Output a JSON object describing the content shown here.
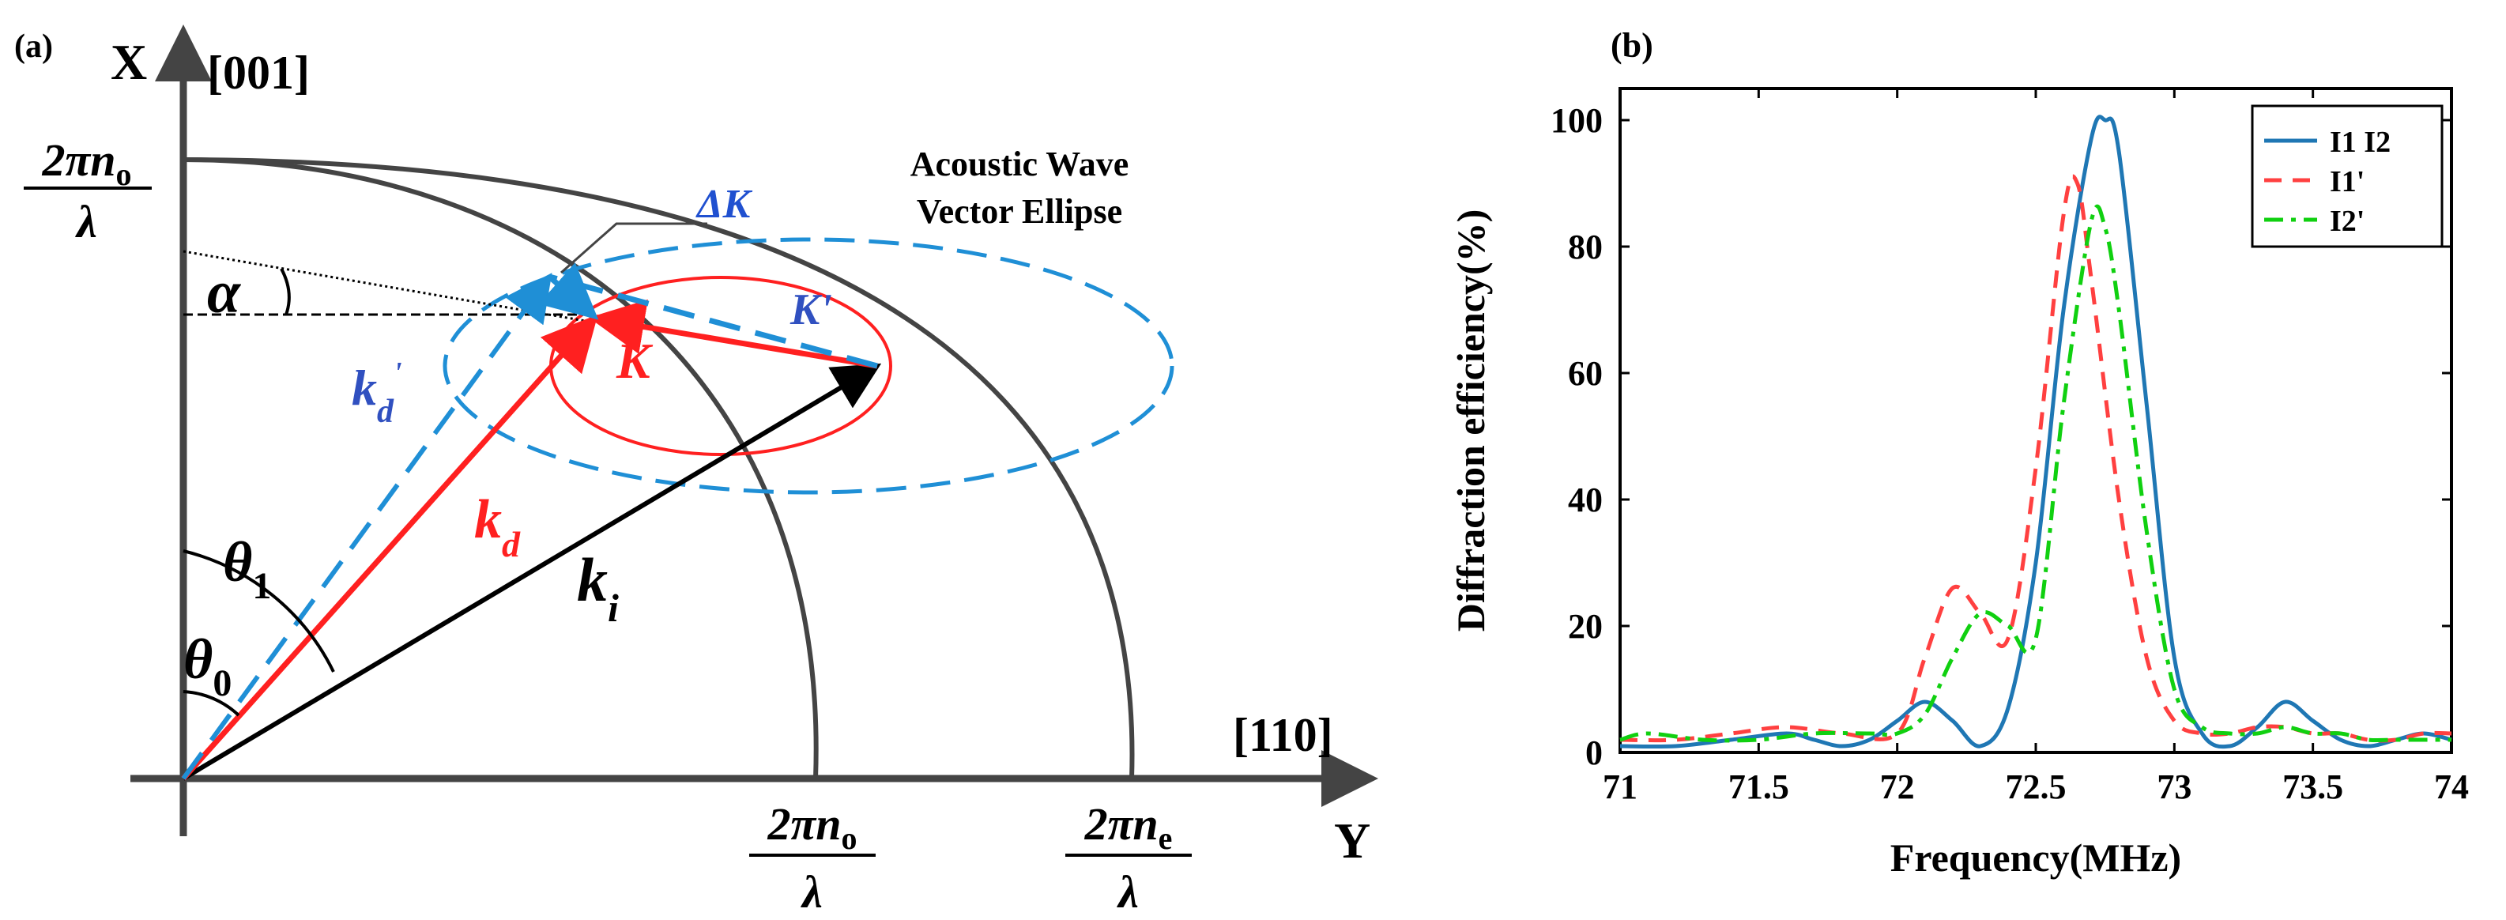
{
  "panel_a": {
    "label": "(a)",
    "axis_x_label": "X",
    "axis_x_dir": "[001]",
    "axis_y_label": "Y",
    "axis_y_dir": "[110]",
    "ellipse_title_line1": "Acoustic Wave",
    "ellipse_title_line2": "Vector Ellipse",
    "frac_no": {
      "num": "2πn",
      "sub": "o",
      "den": "λ"
    },
    "frac_ne": {
      "num": "2πn",
      "sub": "e",
      "den": "λ"
    },
    "delta_k": "ΔK",
    "K": "K",
    "K_prime": "K'",
    "kd": {
      "main": "k",
      "sub": "d"
    },
    "kd_prime": {
      "main": "k",
      "sub": "d",
      "sup": "'"
    },
    "ki": {
      "main": "k",
      "sub": "i"
    },
    "theta1": {
      "main": "θ",
      "sub": "1"
    },
    "theta0": {
      "main": "θ",
      "sub": "0"
    },
    "alpha": "α",
    "colors": {
      "red": "#ff2020",
      "blue": "#1f8fd6",
      "dark_blue": "#3050c0",
      "black": "#000000",
      "circle": "#444444"
    }
  },
  "panel_b": {
    "label": "(b)",
    "xlabel": "Frequency(MHz)",
    "ylabel": "Diffraction efficiency(%)"
  },
  "chart_data": {
    "type": "line",
    "title": "",
    "xlabel": "Frequency(MHz)",
    "ylabel": "Diffraction efficiency(%)",
    "xlim": [
      71,
      74
    ],
    "ylim": [
      0,
      105
    ],
    "xticks": [
      "71",
      "71.5",
      "72",
      "72.5",
      "73",
      "73.5",
      "74"
    ],
    "yticks": [
      "0",
      "20",
      "40",
      "60",
      "80",
      "100"
    ],
    "legend_position": "top-right",
    "series": [
      {
        "name": "I1 I2",
        "color": "#1f77b4",
        "style": "solid",
        "x": [
          71.0,
          71.2,
          71.4,
          71.6,
          71.7,
          71.8,
          71.9,
          72.0,
          72.1,
          72.2,
          72.3,
          72.4,
          72.5,
          72.6,
          72.7,
          72.75,
          72.8,
          72.9,
          73.0,
          73.1,
          73.2,
          73.3,
          73.4,
          73.5,
          73.6,
          73.7,
          73.8,
          73.9,
          74.0
        ],
        "y": [
          1,
          1,
          2,
          3,
          2,
          1,
          2,
          5,
          8,
          5,
          1,
          7,
          30,
          70,
          97,
          100,
          95,
          55,
          15,
          3,
          1,
          4,
          8,
          5,
          2,
          1,
          2,
          3,
          2
        ]
      },
      {
        "name": "I1'",
        "color": "#ff4040",
        "style": "dashed",
        "x": [
          71.0,
          71.2,
          71.4,
          71.6,
          71.8,
          72.0,
          72.1,
          72.2,
          72.3,
          72.4,
          72.5,
          72.6,
          72.65,
          72.7,
          72.8,
          72.9,
          73.0,
          73.1,
          73.2,
          73.3,
          73.4,
          73.5,
          73.6,
          73.7,
          73.8,
          73.9,
          74.0
        ],
        "y": [
          2,
          2,
          3,
          4,
          3,
          3,
          15,
          26,
          22,
          18,
          45,
          85,
          90,
          75,
          40,
          15,
          5,
          3,
          3,
          4,
          4,
          3,
          3,
          2,
          2,
          3,
          3
        ]
      },
      {
        "name": "I2'",
        "color": "#10d010",
        "style": "dashdot",
        "x": [
          71.0,
          71.1,
          71.3,
          71.5,
          71.7,
          71.9,
          72.0,
          72.1,
          72.2,
          72.3,
          72.4,
          72.5,
          72.6,
          72.7,
          72.75,
          72.8,
          72.9,
          73.0,
          73.1,
          73.2,
          73.3,
          73.4,
          73.5,
          73.6,
          73.7,
          73.8,
          73.9,
          74.0
        ],
        "y": [
          2,
          3,
          2,
          2,
          3,
          3,
          3,
          6,
          15,
          22,
          20,
          18,
          55,
          84,
          83,
          70,
          35,
          10,
          4,
          3,
          3,
          4,
          3,
          3,
          2,
          2,
          2,
          2
        ]
      }
    ]
  }
}
